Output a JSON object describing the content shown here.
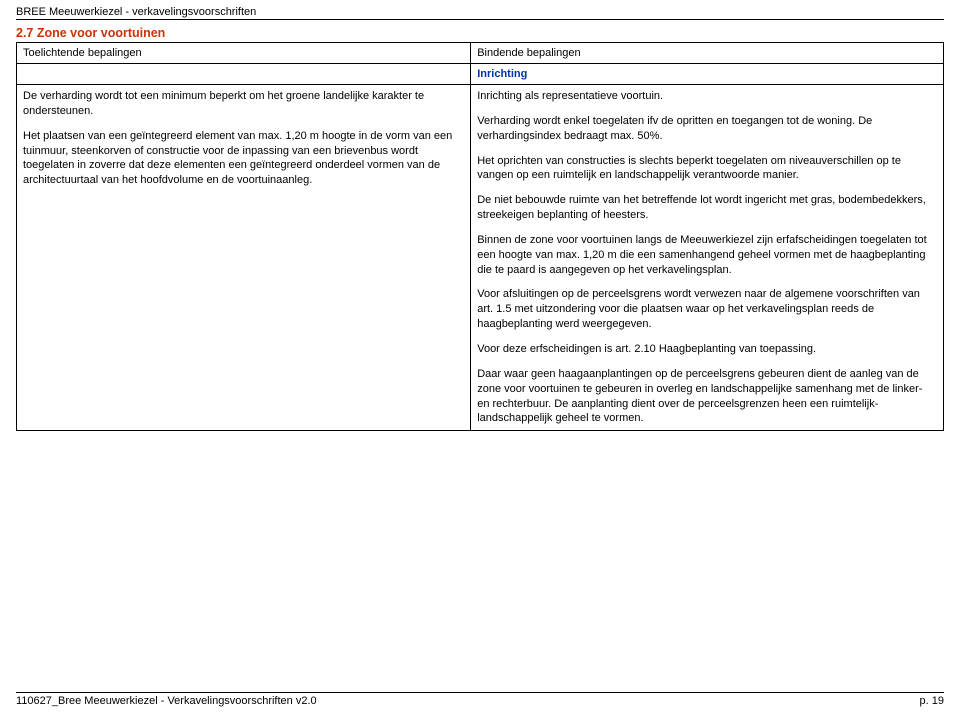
{
  "header": {
    "doc_title": "BREE Meeuwerkiezel - verkavelingsvoorschriften"
  },
  "section": {
    "title": "2.7 Zone voor voortuinen"
  },
  "table": {
    "head_left": "Toelichtende bepalingen",
    "head_right": "Bindende bepalingen",
    "right_subhead": "Inrichting",
    "left_paragraphs": [
      "De verharding wordt tot een minimum beperkt om het groene landelijke karakter te ondersteunen.",
      "Het plaatsen van een geïntegreerd element van max. 1,20 m hoogte in de vorm van een tuinmuur, steenkorven of constructie voor de inpassing van een brievenbus wordt toegelaten in zoverre dat deze elementen een geïntegreerd onderdeel vormen van de architectuurtaal van het hoofdvolume en de voortuinaanleg."
    ],
    "right_paragraphs": [
      "Inrichting als representatieve voortuin.",
      "Verharding wordt enkel toegelaten ifv de opritten en toegangen tot de woning. De verhardingsindex bedraagt max. 50%.",
      "Het oprichten van constructies is slechts beperkt toegelaten om niveauverschillen op te vangen op een ruimtelijk en landschappelijk verantwoorde manier.",
      "De niet bebouwde ruimte van het betreffende lot wordt ingericht met gras, bodembedekkers, streekeigen beplanting of heesters.",
      "Binnen de zone voor voortuinen langs de Meeuwerkiezel zijn erfafscheidingen toegelaten tot een hoogte van max. 1,20 m die een samenhangend geheel vormen met de haagbeplanting die te paard is aangegeven op het verkavelingsplan.",
      "Voor afsluitingen op de perceelsgrens wordt verwezen naar de algemene voorschriften van art. 1.5 met uitzondering voor die plaatsen waar op het verkavelingsplan reeds de haagbeplanting werd weergegeven.",
      "Voor deze erfscheidingen is art. 2.10 Haagbeplanting van toepassing.",
      "Daar waar geen haagaanplantingen op de perceelsgrens gebeuren dient de aanleg van de zone voor voortuinen te gebeuren in overleg en landschappelijke samenhang met de linker- en rechterbuur.  De aanplanting dient over de perceelsgrenzen heen een ruimtelijk-landschappelijk geheel te vormen."
    ]
  },
  "footer": {
    "left": "110627_Bree Meeuwerkiezel - Verkavelingsvoorschriften v2.0",
    "right": "p. 19"
  },
  "colors": {
    "accent_red": "#cc3300",
    "accent_blue": "#0033aa",
    "border": "#000000",
    "text": "#000000",
    "background": "#ffffff"
  }
}
